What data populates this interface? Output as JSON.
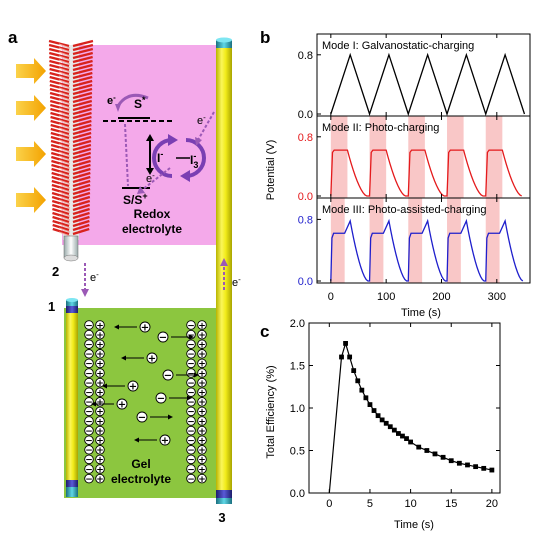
{
  "panel_letters": {
    "a": "a",
    "b": "b",
    "c": "c"
  },
  "diagram": {
    "redox_label_1": "Redox",
    "redox_label_2": "electrolyte",
    "gel_label_1": "Gel",
    "gel_label_2": "electrolyte",
    "node_1": "1",
    "node_2": "2",
    "node_3": "3",
    "electron": "e",
    "electron_sup": "-",
    "s_star": "S",
    "s_star_sup": "*",
    "s_couple": "S/S",
    "s_couple_sup": "+",
    "iodide": "I",
    "iodide_sup": "-",
    "triiodide": "I",
    "triiodide_sub": "3",
    "triiodide_sup": "-",
    "colors": {
      "pink": "#f4a9ea",
      "green": "#8cc63f",
      "yellow": "#f2ec1a",
      "red_fiber": "#d8231d",
      "arrow_purple": "#9b59b6",
      "sun": "#f8b400"
    },
    "right_side_charges": "⊖⊕",
    "left_side_charges": "⊖⊕",
    "plus_ion": "+",
    "minus_ion": "−"
  },
  "chart_data": [
    {
      "type": "line",
      "panel": "b",
      "ylabel": "Potential (V)",
      "xlabel": "Time (s)",
      "xlim": [
        -25,
        360
      ],
      "x_ticks": [
        0,
        100,
        200,
        300
      ],
      "subplots": [
        {
          "title": "Mode I: Galvanostatic-charging",
          "color": "#000000",
          "tick_color": "#000000",
          "ylim": [
            0,
            1.0
          ],
          "y_ticks": [
            0.0,
            0.8
          ],
          "y_tick_labels": [
            "0.0",
            "0.8"
          ],
          "shaded_intervals": [],
          "cycle_starts": [
            0,
            70,
            140,
            210,
            280
          ],
          "series": [
            {
              "name": "",
              "x": [
                0,
                35,
                70,
                105,
                140,
                175,
                210,
                245,
                280,
                315,
                350
              ],
              "y": [
                0.0,
                0.8,
                0.0,
                0.8,
                0.0,
                0.8,
                0.0,
                0.8,
                0.0,
                0.8,
                0.0
              ]
            }
          ]
        },
        {
          "title": "Mode II: Photo-charging",
          "color": "#e41a1c",
          "tick_color": "#e41a1c",
          "ylim": [
            0,
            1.0
          ],
          "y_ticks": [
            0.0,
            0.8
          ],
          "y_tick_labels": [
            "0.0",
            "0.8"
          ],
          "shaded_intervals": [
            [
              0,
              30
            ],
            [
              70,
              100
            ],
            [
              140,
              170
            ],
            [
              210,
              240
            ],
            [
              280,
              310
            ]
          ],
          "plateau": 0.62
        },
        {
          "title": "Mode III: Photo-assisted-charging",
          "color": "#1f1fcc",
          "tick_color": "#1f1fcc",
          "ylim": [
            0,
            1.0
          ],
          "y_ticks": [
            0.0,
            0.8
          ],
          "y_tick_labels": [
            "0.0",
            "0.8"
          ],
          "shaded_intervals": [
            [
              0,
              25
            ],
            [
              70,
              95
            ],
            [
              140,
              165
            ],
            [
              210,
              235
            ],
            [
              280,
              305
            ]
          ],
          "plateau": 0.62,
          "peak": 0.78
        }
      ],
      "x_tick_labels": [
        "0",
        "100",
        "200",
        "300"
      ]
    },
    {
      "type": "line",
      "panel": "c",
      "xlabel": "Time (s)",
      "ylabel": "Total Efficiency (%)",
      "xlim": [
        -2.5,
        21
      ],
      "ylim": [
        0,
        2.0
      ],
      "x_ticks": [
        0,
        5,
        10,
        15,
        20
      ],
      "x_tick_labels": [
        "0",
        "5",
        "10",
        "15",
        "20"
      ],
      "y_ticks": [
        0.0,
        0.5,
        1.0,
        1.5,
        2.0
      ],
      "y_tick_labels": [
        "0.0",
        "0.5",
        "1.0",
        "1.5",
        "2.0"
      ],
      "series": [
        {
          "name": "",
          "x": [
            0,
            1.5,
            2,
            2.5,
            3,
            3.5,
            4,
            4.5,
            5,
            5.5,
            6,
            6.5,
            7,
            7.5,
            8,
            8.5,
            9,
            9.5,
            10,
            11,
            12,
            13,
            14,
            15,
            16,
            17,
            18,
            19,
            20
          ],
          "y": [
            0.0,
            1.6,
            1.76,
            1.6,
            1.44,
            1.32,
            1.21,
            1.12,
            1.04,
            0.97,
            0.91,
            0.86,
            0.82,
            0.78,
            0.74,
            0.7,
            0.67,
            0.64,
            0.6,
            0.54,
            0.5,
            0.46,
            0.42,
            0.38,
            0.35,
            0.33,
            0.31,
            0.29,
            0.27
          ]
        }
      ]
    }
  ]
}
